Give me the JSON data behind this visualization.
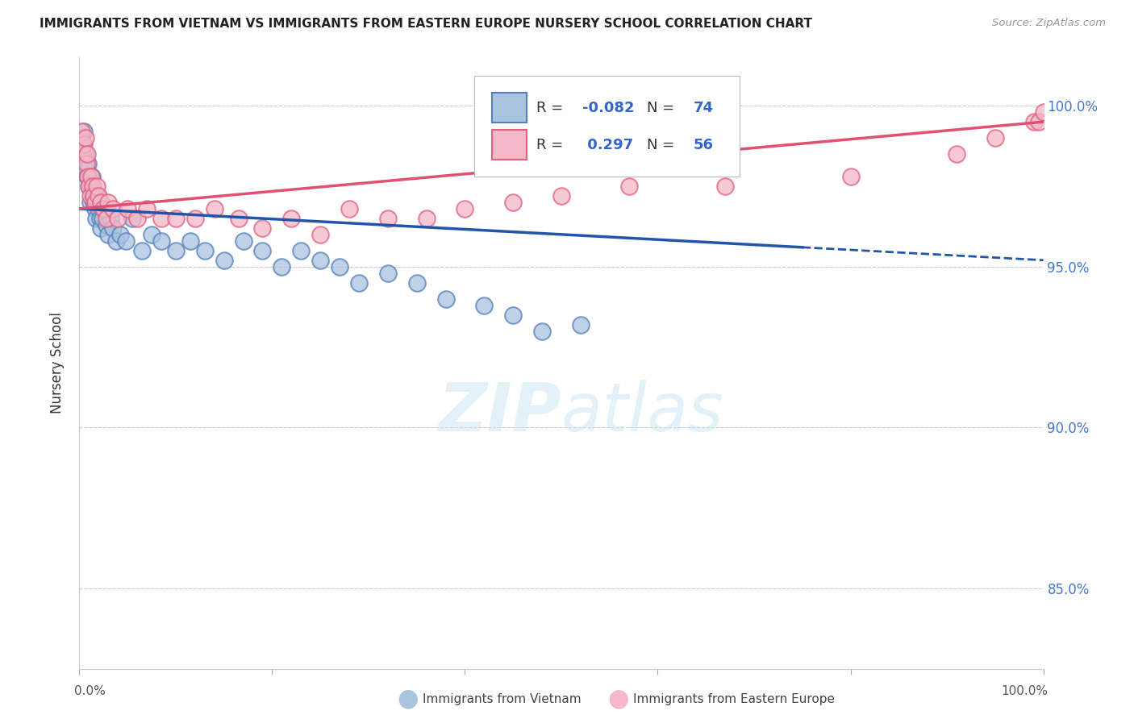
{
  "title": "IMMIGRANTS FROM VIETNAM VS IMMIGRANTS FROM EASTERN EUROPE NURSERY SCHOOL CORRELATION CHART",
  "source": "Source: ZipAtlas.com",
  "ylabel": "Nursery School",
  "y_ticks": [
    85.0,
    90.0,
    95.0,
    100.0
  ],
  "y_tick_labels": [
    "85.0%",
    "90.0%",
    "95.0%",
    "100.0%"
  ],
  "xlim": [
    0.0,
    100.0
  ],
  "ylim": [
    82.5,
    101.5
  ],
  "watermark": "ZIPatlas",
  "blue_color": "#aac4e0",
  "pink_color": "#f4b8c8",
  "blue_edge_color": "#5580bb",
  "pink_edge_color": "#e06080",
  "blue_line_color": "#2255aa",
  "pink_line_color": "#e05070",
  "vietnam_x": [
    0.2,
    0.4,
    0.5,
    0.6,
    0.7,
    0.8,
    0.9,
    1.0,
    1.1,
    1.2,
    1.3,
    1.4,
    1.5,
    1.6,
    1.7,
    1.8,
    1.9,
    2.0,
    2.1,
    2.2,
    2.4,
    2.6,
    2.8,
    3.0,
    3.2,
    3.5,
    3.8,
    4.2,
    4.8,
    5.5,
    6.5,
    7.5,
    8.5,
    10.0,
    11.5,
    13.0,
    15.0,
    17.0,
    19.0,
    21.0,
    23.0,
    25.0,
    27.0,
    29.0,
    32.0,
    35.0,
    38.0,
    42.0,
    45.0,
    48.0,
    52.0
  ],
  "vietnam_y": [
    99.0,
    98.8,
    99.2,
    98.5,
    98.0,
    97.8,
    98.2,
    97.5,
    97.0,
    97.5,
    97.8,
    97.2,
    97.0,
    96.8,
    96.5,
    97.0,
    97.2,
    96.8,
    96.5,
    96.2,
    96.5,
    96.8,
    96.3,
    96.0,
    96.5,
    96.2,
    95.8,
    96.0,
    95.8,
    96.5,
    95.5,
    96.0,
    95.8,
    95.5,
    95.8,
    95.5,
    95.2,
    95.8,
    95.5,
    95.0,
    95.5,
    95.2,
    95.0,
    94.5,
    94.8,
    94.5,
    94.0,
    93.8,
    93.5,
    93.0,
    93.2
  ],
  "eastern_x": [
    0.2,
    0.3,
    0.5,
    0.6,
    0.7,
    0.8,
    0.9,
    1.0,
    1.1,
    1.2,
    1.4,
    1.5,
    1.6,
    1.8,
    2.0,
    2.2,
    2.5,
    2.8,
    3.0,
    3.5,
    4.0,
    5.0,
    6.0,
    7.0,
    8.5,
    10.0,
    12.0,
    14.0,
    16.5,
    19.0,
    22.0,
    25.0,
    28.0,
    32.0,
    36.0,
    40.0,
    45.0,
    50.0,
    57.0,
    67.0,
    80.0,
    91.0,
    95.0,
    99.0,
    99.5,
    100.0
  ],
  "eastern_y": [
    99.2,
    98.5,
    98.8,
    99.0,
    98.2,
    98.5,
    97.8,
    97.5,
    97.2,
    97.8,
    97.5,
    97.2,
    97.0,
    97.5,
    97.2,
    97.0,
    96.8,
    96.5,
    97.0,
    96.8,
    96.5,
    96.8,
    96.5,
    96.8,
    96.5,
    96.5,
    96.5,
    96.8,
    96.5,
    96.2,
    96.5,
    96.0,
    96.8,
    96.5,
    96.5,
    96.8,
    97.0,
    97.2,
    97.5,
    97.5,
    97.8,
    98.5,
    99.0,
    99.5,
    99.5,
    99.8
  ],
  "vn_line_x0": 0.0,
  "vn_line_y0": 96.8,
  "vn_line_x1": 100.0,
  "vn_line_y1": 95.2,
  "ee_line_x0": 0.0,
  "ee_line_y0": 96.8,
  "ee_line_x1": 100.0,
  "ee_line_y1": 99.5,
  "vn_dash_start": 75.0
}
